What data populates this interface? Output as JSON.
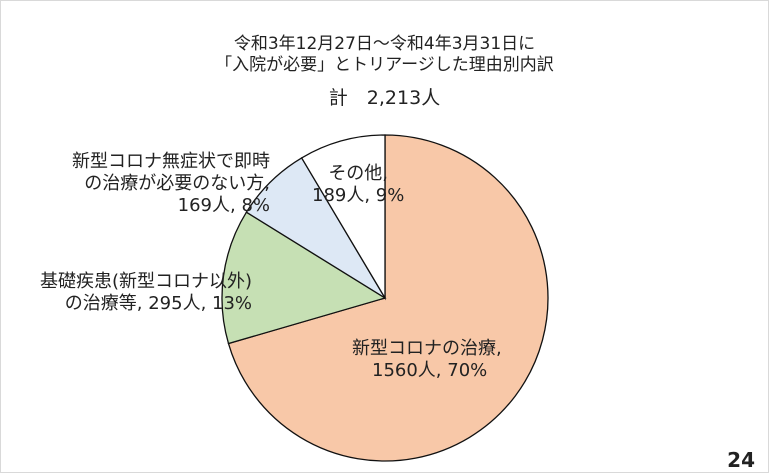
{
  "page_number": "24",
  "chart_data": {
    "type": "pie",
    "title_line1": "令和3年12月27日～令和4年3月31日に",
    "title_line2": "「入院が必要」とトリアージした理由別内訳",
    "total_label": "計　2,213人",
    "start_angle_deg": 0,
    "direction": "clockwise",
    "slices": [
      {
        "name": "新型コロナの治療",
        "count": 1560,
        "percent": 70,
        "color": "#f8c8a8",
        "label_lines": [
          "新型コロナの治療,",
          "1560人, 70%"
        ]
      },
      {
        "name": "基礎疾患(新型コロナ以外)の治療等",
        "count": 295,
        "percent": 13,
        "color": "#c6e0b4",
        "label_lines": [
          "基礎疾患(新型コロナ以外)",
          "の治療等, 295人, 13%"
        ]
      },
      {
        "name": "新型コロナ無症状で即時の治療が必要のない方",
        "count": 169,
        "percent": 8,
        "color": "#dde8f5",
        "label_lines": [
          "新型コロナ無症状で即時",
          "の治療が必要のない方,",
          "169人, 8%"
        ]
      },
      {
        "name": "その他",
        "count": 189,
        "percent": 9,
        "color": "#ffffff",
        "label_lines": [
          "その他,",
          "189人, 9%"
        ]
      }
    ]
  }
}
